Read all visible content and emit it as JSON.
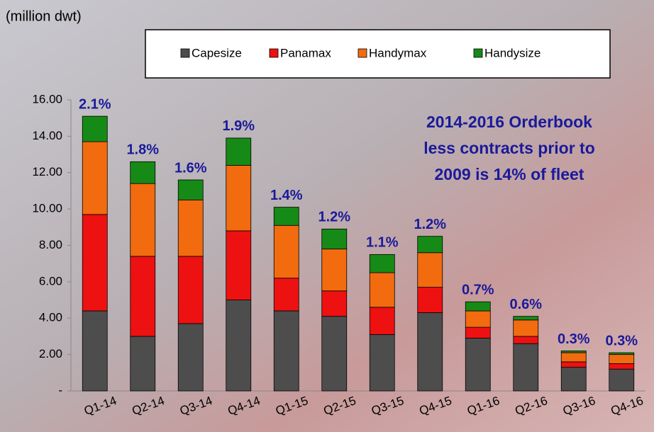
{
  "chart_data": {
    "type": "stacked_bar",
    "y_axis_label": "(million dwt)",
    "categories": [
      "Q1-14",
      "Q2-14",
      "Q3-14",
      "Q4-14",
      "Q1-15",
      "Q2-15",
      "Q3-15",
      "Q4-15",
      "Q1-16",
      "Q2-16",
      "Q3-16",
      "Q4-16"
    ],
    "series": [
      {
        "name": "Capesize",
        "color": "#4d4d4d",
        "values": [
          4.4,
          3.0,
          3.7,
          5.0,
          4.4,
          4.1,
          3.1,
          4.3,
          2.9,
          2.6,
          1.3,
          1.2
        ]
      },
      {
        "name": "Panamax",
        "color": "#ee1111",
        "values": [
          5.3,
          4.4,
          3.7,
          3.8,
          1.8,
          1.4,
          1.5,
          1.4,
          0.6,
          0.4,
          0.3,
          0.3
        ]
      },
      {
        "name": "Handymax",
        "color": "#f26b0f",
        "values": [
          4.0,
          4.0,
          3.1,
          3.6,
          2.9,
          2.3,
          1.9,
          1.9,
          0.9,
          0.9,
          0.5,
          0.5
        ]
      },
      {
        "name": "Handysize",
        "color": "#168a16",
        "values": [
          1.4,
          1.2,
          1.1,
          1.5,
          1.0,
          1.1,
          1.0,
          0.9,
          0.5,
          0.2,
          0.1,
          0.1
        ]
      }
    ],
    "bar_annotations": [
      "2.1%",
      "1.8%",
      "1.6%",
      "1.9%",
      "1.4%",
      "1.2%",
      "1.1%",
      "1.2%",
      "0.7%",
      "0.6%",
      "0.3%",
      "0.3%"
    ],
    "note": [
      "2014-2016 Orderbook",
      "less contracts prior to",
      "2009 is 14% of fleet"
    ],
    "ylim": [
      0,
      16
    ],
    "yticks": [
      {
        "value": 0,
        "label": "-"
      },
      {
        "value": 2,
        "label": "2.00"
      },
      {
        "value": 4,
        "label": "4.00"
      },
      {
        "value": 6,
        "label": "6.00"
      },
      {
        "value": 8,
        "label": "8.00"
      },
      {
        "value": 10,
        "label": "10.00"
      },
      {
        "value": 12,
        "label": "12.00"
      },
      {
        "value": 14,
        "label": "14.00"
      },
      {
        "value": 16,
        "label": "16.00"
      }
    ]
  }
}
